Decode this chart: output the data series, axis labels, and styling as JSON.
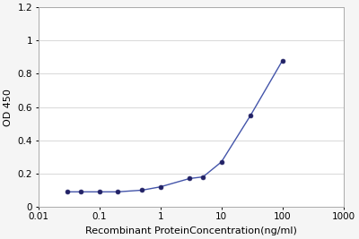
{
  "x": [
    0.03,
    0.05,
    0.1,
    0.2,
    0.5,
    1,
    3,
    5,
    10,
    30,
    100
  ],
  "y": [
    0.09,
    0.09,
    0.09,
    0.09,
    0.1,
    0.12,
    0.17,
    0.18,
    0.27,
    0.55,
    0.88
  ],
  "xlabel": "Recombinant ProteinConcentration(ng/ml)",
  "ylabel": "OD 450",
  "xlim_log": [
    0.01,
    1000
  ],
  "ylim": [
    0,
    1.2
  ],
  "yticks": [
    0,
    0.2,
    0.4,
    0.6,
    0.8,
    1.0,
    1.2
  ],
  "ytick_labels": [
    "0",
    "0.2",
    "0.4",
    "0.6",
    "0.8",
    "1",
    "1.2"
  ],
  "xticks": [
    0.01,
    0.1,
    1,
    10,
    100,
    1000
  ],
  "xtick_labels": [
    "0.01",
    "0.1",
    "1",
    "10",
    "100",
    "1000"
  ],
  "line_color": "#4455aa",
  "marker_color": "#222266",
  "bg_color": "#f5f5f5",
  "plot_bg_color": "#ffffff",
  "grid_color": "#d8d8d8",
  "label_fontsize": 8,
  "tick_fontsize": 7.5,
  "ylabel_fontsize": 8
}
